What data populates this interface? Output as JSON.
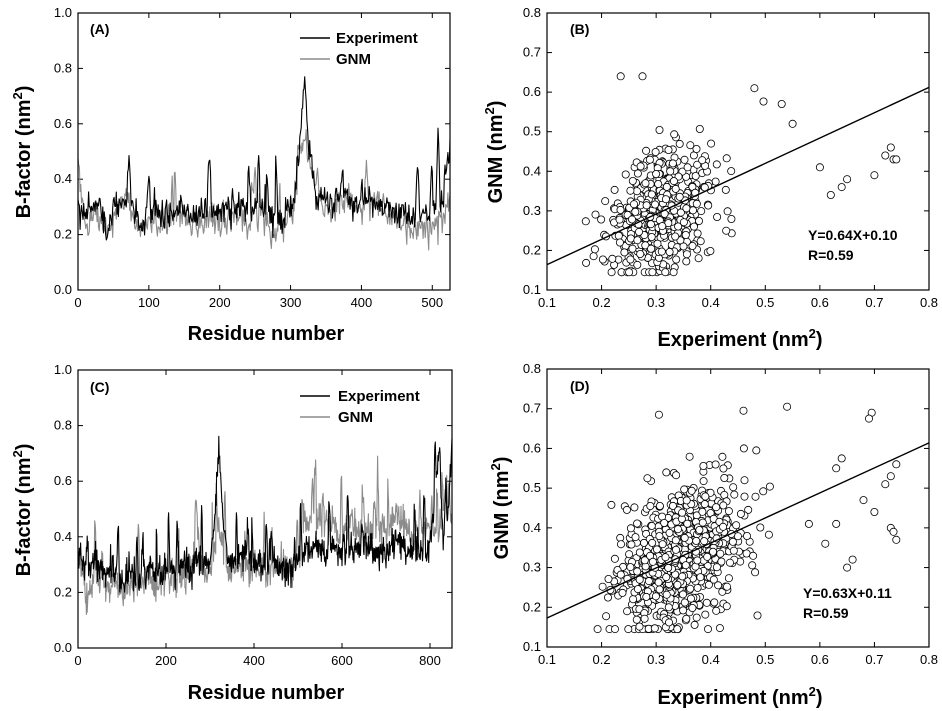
{
  "chart_data": [
    {
      "panel": "(A)",
      "type": "line",
      "xlabel": "Residue number",
      "ylabel_main": "B-factor (nm",
      "ylabel_sup": "2",
      "ylabel_close": ")",
      "xlim": [
        0,
        525
      ],
      "ylim": [
        0.0,
        1.0
      ],
      "xticks": [
        0,
        100,
        200,
        300,
        400,
        500
      ],
      "yticks": [
        "0.0",
        "0.2",
        "0.4",
        "0.6",
        "0.8",
        "1.0"
      ],
      "n_points": 525,
      "series": [
        {
          "name": "Experiment",
          "color": "#000000",
          "profile": [
            [
              0,
              0.3
            ],
            [
              15,
              0.26
            ],
            [
              30,
              0.31
            ],
            [
              40,
              0.23
            ],
            [
              55,
              0.3
            ],
            [
              70,
              0.33
            ],
            [
              80,
              0.28
            ],
            [
              90,
              0.21
            ],
            [
              100,
              0.27
            ],
            [
              120,
              0.26
            ],
            [
              140,
              0.3
            ],
            [
              160,
              0.26
            ],
            [
              180,
              0.29
            ],
            [
              200,
              0.28
            ],
            [
              220,
              0.3
            ],
            [
              240,
              0.28
            ],
            [
              260,
              0.32
            ],
            [
              275,
              0.24
            ],
            [
              290,
              0.27
            ],
            [
              305,
              0.34
            ],
            [
              314,
              0.55
            ],
            [
              320,
              0.74
            ],
            [
              326,
              0.5
            ],
            [
              335,
              0.33
            ],
            [
              350,
              0.32
            ],
            [
              370,
              0.35
            ],
            [
              390,
              0.3
            ],
            [
              410,
              0.34
            ],
            [
              430,
              0.3
            ],
            [
              450,
              0.29
            ],
            [
              470,
              0.26
            ],
            [
              490,
              0.27
            ],
            [
              505,
              0.3
            ],
            [
              515,
              0.34
            ],
            [
              525,
              0.54
            ]
          ]
        },
        {
          "name": "GNM",
          "color": "#8c8c8c",
          "profile": [
            [
              0,
              0.45
            ],
            [
              10,
              0.22
            ],
            [
              25,
              0.29
            ],
            [
              40,
              0.2
            ],
            [
              55,
              0.26
            ],
            [
              70,
              0.36
            ],
            [
              80,
              0.24
            ],
            [
              90,
              0.2
            ],
            [
              100,
              0.27
            ],
            [
              120,
              0.23
            ],
            [
              140,
              0.28
            ],
            [
              160,
              0.23
            ],
            [
              180,
              0.26
            ],
            [
              200,
              0.25
            ],
            [
              220,
              0.28
            ],
            [
              240,
              0.24
            ],
            [
              260,
              0.3
            ],
            [
              275,
              0.19
            ],
            [
              290,
              0.24
            ],
            [
              305,
              0.31
            ],
            [
              315,
              0.5
            ],
            [
              320,
              0.56
            ],
            [
              330,
              0.45
            ],
            [
              345,
              0.29
            ],
            [
              360,
              0.3
            ],
            [
              380,
              0.33
            ],
            [
              400,
              0.28
            ],
            [
              420,
              0.32
            ],
            [
              440,
              0.27
            ],
            [
              460,
              0.24
            ],
            [
              480,
              0.22
            ],
            [
              500,
              0.23
            ],
            [
              515,
              0.25
            ],
            [
              525,
              0.3
            ]
          ]
        }
      ]
    },
    {
      "panel": "(B)",
      "type": "scatter",
      "xlabel_main": "Experiment (nm",
      "xlabel_sup": "2",
      "xlabel_close": ")",
      "ylabel_main": "GNM (nm",
      "ylabel_sup": "2",
      "ylabel_close": ")",
      "xlim": [
        0.1,
        0.8
      ],
      "ylim": [
        0.1,
        0.8
      ],
      "xticks": [
        "0.1",
        "0.2",
        "0.3",
        "0.4",
        "0.5",
        "0.6",
        "0.7",
        "0.8"
      ],
      "yticks": [
        "0.1",
        "0.2",
        "0.3",
        "0.4",
        "0.5",
        "0.6",
        "0.7",
        "0.8"
      ],
      "fit": {
        "slope": 0.64,
        "intercept": 0.1
      },
      "equation": "Y=0.64X+0.10",
      "r_text": "R=0.59",
      "n_points": 520,
      "cloud": {
        "x_mean": 0.29,
        "x_sd": 0.055,
        "x_min": 0.16,
        "x_max": 0.5,
        "y_sd": 0.075
      },
      "outliers": [
        [
          0.235,
          0.64
        ],
        [
          0.275,
          0.64
        ],
        [
          0.48,
          0.61
        ],
        [
          0.53,
          0.57
        ],
        [
          0.55,
          0.52
        ],
        [
          0.6,
          0.41
        ],
        [
          0.62,
          0.34
        ],
        [
          0.64,
          0.36
        ],
        [
          0.65,
          0.38
        ],
        [
          0.7,
          0.39
        ],
        [
          0.73,
          0.46
        ],
        [
          0.735,
          0.43
        ],
        [
          0.74,
          0.43
        ],
        [
          0.72,
          0.44
        ]
      ]
    },
    {
      "panel": "(C)",
      "type": "line",
      "xlabel": "Residue number",
      "ylabel_main": "B-factor (nm",
      "ylabel_sup": "2",
      "ylabel_close": ")",
      "xlim": [
        0,
        850
      ],
      "ylim": [
        0.0,
        1.0
      ],
      "xticks": [
        0,
        200,
        400,
        600,
        800
      ],
      "yticks": [
        "0.0",
        "0.2",
        "0.4",
        "0.6",
        "0.8",
        "1.0"
      ],
      "n_points": 850,
      "series": [
        {
          "name": "Experiment",
          "color": "#000000",
          "profile": [
            [
              0,
              0.33
            ],
            [
              20,
              0.28
            ],
            [
              40,
              0.31
            ],
            [
              60,
              0.26
            ],
            [
              80,
              0.29
            ],
            [
              100,
              0.24
            ],
            [
              120,
              0.28
            ],
            [
              140,
              0.25
            ],
            [
              160,
              0.29
            ],
            [
              180,
              0.26
            ],
            [
              200,
              0.29
            ],
            [
              220,
              0.27
            ],
            [
              240,
              0.3
            ],
            [
              260,
              0.28
            ],
            [
              280,
              0.32
            ],
            [
              300,
              0.31
            ],
            [
              312,
              0.5
            ],
            [
              320,
              0.74
            ],
            [
              328,
              0.48
            ],
            [
              340,
              0.3
            ],
            [
              360,
              0.32
            ],
            [
              380,
              0.34
            ],
            [
              400,
              0.31
            ],
            [
              420,
              0.3
            ],
            [
              440,
              0.32
            ],
            [
              460,
              0.29
            ],
            [
              480,
              0.27
            ],
            [
              500,
              0.3
            ],
            [
              520,
              0.36
            ],
            [
              540,
              0.38
            ],
            [
              560,
              0.34
            ],
            [
              580,
              0.37
            ],
            [
              600,
              0.33
            ],
            [
              620,
              0.36
            ],
            [
              640,
              0.35
            ],
            [
              660,
              0.37
            ],
            [
              680,
              0.34
            ],
            [
              700,
              0.33
            ],
            [
              720,
              0.4
            ],
            [
              740,
              0.36
            ],
            [
              760,
              0.34
            ],
            [
              780,
              0.33
            ],
            [
              800,
              0.36
            ],
            [
              815,
              0.62
            ],
            [
              822,
              0.73
            ],
            [
              830,
              0.4
            ],
            [
              840,
              0.45
            ],
            [
              850,
              0.74
            ]
          ]
        },
        {
          "name": "GNM",
          "color": "#8c8c8c",
          "profile": [
            [
              0,
              0.36
            ],
            [
              20,
              0.18
            ],
            [
              40,
              0.24
            ],
            [
              60,
              0.21
            ],
            [
              80,
              0.24
            ],
            [
              100,
              0.2
            ],
            [
              120,
              0.25
            ],
            [
              140,
              0.22
            ],
            [
              160,
              0.26
            ],
            [
              180,
              0.23
            ],
            [
              200,
              0.25
            ],
            [
              220,
              0.22
            ],
            [
              240,
              0.26
            ],
            [
              260,
              0.28
            ],
            [
              270,
              0.45
            ],
            [
              280,
              0.3
            ],
            [
              300,
              0.27
            ],
            [
              320,
              0.44
            ],
            [
              340,
              0.28
            ],
            [
              360,
              0.3
            ],
            [
              380,
              0.29
            ],
            [
              400,
              0.27
            ],
            [
              420,
              0.28
            ],
            [
              440,
              0.26
            ],
            [
              460,
              0.3
            ],
            [
              480,
              0.28
            ],
            [
              500,
              0.3
            ],
            [
              520,
              0.45
            ],
            [
              540,
              0.48
            ],
            [
              560,
              0.42
            ],
            [
              580,
              0.45
            ],
            [
              600,
              0.4
            ],
            [
              620,
              0.45
            ],
            [
              640,
              0.43
            ],
            [
              660,
              0.42
            ],
            [
              680,
              0.44
            ],
            [
              700,
              0.41
            ],
            [
              720,
              0.47
            ],
            [
              740,
              0.45
            ],
            [
              760,
              0.4
            ],
            [
              780,
              0.42
            ],
            [
              800,
              0.45
            ],
            [
              820,
              0.4
            ],
            [
              835,
              0.55
            ],
            [
              850,
              0.45
            ]
          ]
        }
      ]
    },
    {
      "panel": "(D)",
      "type": "scatter",
      "xlabel_main": "Experiment (nm",
      "xlabel_sup": "2",
      "xlabel_close": ")",
      "ylabel_main": "GNM (nm",
      "ylabel_sup": "2",
      "ylabel_close": ")",
      "xlim": [
        0.1,
        0.8
      ],
      "ylim": [
        0.1,
        0.8
      ],
      "xticks": [
        "0.1",
        "0.2",
        "0.3",
        "0.4",
        "0.5",
        "0.6",
        "0.7",
        "0.8"
      ],
      "yticks": [
        "0.1",
        "0.2",
        "0.3",
        "0.4",
        "0.5",
        "0.6",
        "0.7",
        "0.8"
      ],
      "fit": {
        "slope": 0.63,
        "intercept": 0.11
      },
      "equation": "Y=0.63X+0.11",
      "r_text": "R=0.59",
      "n_points": 830,
      "cloud": {
        "x_mean": 0.32,
        "x_sd": 0.065,
        "x_min": 0.17,
        "x_max": 0.56,
        "y_sd": 0.085
      },
      "outliers": [
        [
          0.305,
          0.685
        ],
        [
          0.46,
          0.695
        ],
        [
          0.54,
          0.705
        ],
        [
          0.695,
          0.69
        ],
        [
          0.69,
          0.675
        ],
        [
          0.64,
          0.575
        ],
        [
          0.63,
          0.55
        ],
        [
          0.72,
          0.51
        ],
        [
          0.73,
          0.53
        ],
        [
          0.74,
          0.56
        ],
        [
          0.73,
          0.4
        ],
        [
          0.735,
          0.39
        ],
        [
          0.74,
          0.37
        ],
        [
          0.66,
          0.32
        ],
        [
          0.65,
          0.3
        ],
        [
          0.61,
          0.36
        ],
        [
          0.63,
          0.41
        ],
        [
          0.58,
          0.41
        ],
        [
          0.7,
          0.44
        ],
        [
          0.68,
          0.47
        ]
      ]
    }
  ]
}
